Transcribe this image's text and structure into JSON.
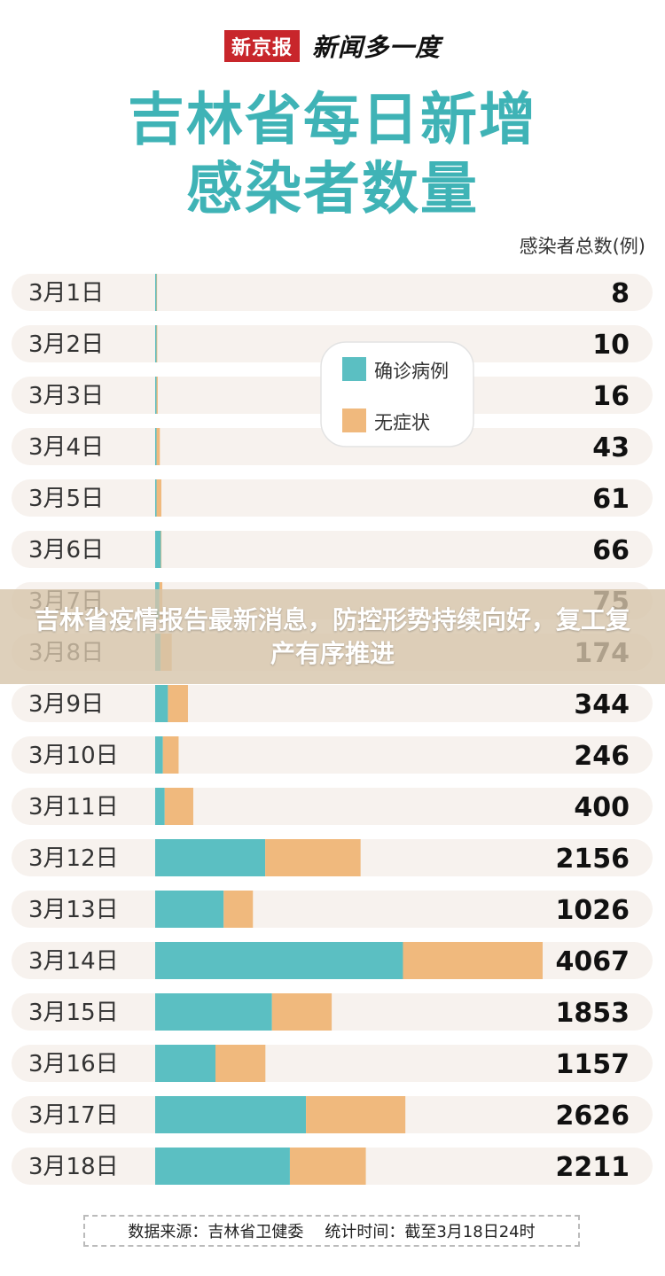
{
  "header": {
    "brand": "新京报",
    "brand_sub": "新闻多一度",
    "title_line1": "吉林省每日新增",
    "title_line2": "感染者数量"
  },
  "unit_label": "感染者总数(例)",
  "legend": {
    "confirmed": "确诊病例",
    "asymptomatic": "无症状"
  },
  "colors": {
    "confirmed": "#5bbfc2",
    "asymptomatic": "#f0b97d",
    "row_bg": "#f7f2ee",
    "title": "#3fb3b6",
    "brand": "#c8262b"
  },
  "chart_data": {
    "type": "bar",
    "orientation": "horizontal",
    "stacked": true,
    "title": "吉林省每日新增感染者数量",
    "xlabel": "感染者总数(例)",
    "categories": [
      "3月1日",
      "3月2日",
      "3月3日",
      "3月4日",
      "3月5日",
      "3月6日",
      "3月7日",
      "3月8日",
      "3月9日",
      "3月10日",
      "3月11日",
      "3月12日",
      "3月13日",
      "3月14日",
      "3月15日",
      "3月16日",
      "3月17日",
      "3月18日"
    ],
    "series": [
      {
        "name": "确诊病例",
        "values": [
          2,
          2,
          3,
          8,
          10,
          60,
          45,
          58,
          134,
          81,
          100,
          1155,
          719,
          2601,
          1226,
          633,
          1583,
          1414
        ]
      },
      {
        "name": "无症状",
        "values": [
          6,
          8,
          13,
          35,
          51,
          6,
          30,
          116,
          210,
          165,
          300,
          1001,
          307,
          1466,
          627,
          524,
          1043,
          797
        ]
      }
    ],
    "totals": [
      8,
      10,
      16,
      43,
      61,
      66,
      75,
      174,
      344,
      246,
      400,
      2156,
      1026,
      4067,
      1853,
      1157,
      2626,
      2211
    ],
    "xlim": [
      0,
      4067
    ]
  },
  "footer": {
    "source": "数据来源：吉林省卫健委",
    "stat_time": "统计时间：截至3月18日24时"
  },
  "overlay": {
    "headline": "吉林省疫情报告最新消息，防控形势持续向好，复工复产有序推进"
  }
}
